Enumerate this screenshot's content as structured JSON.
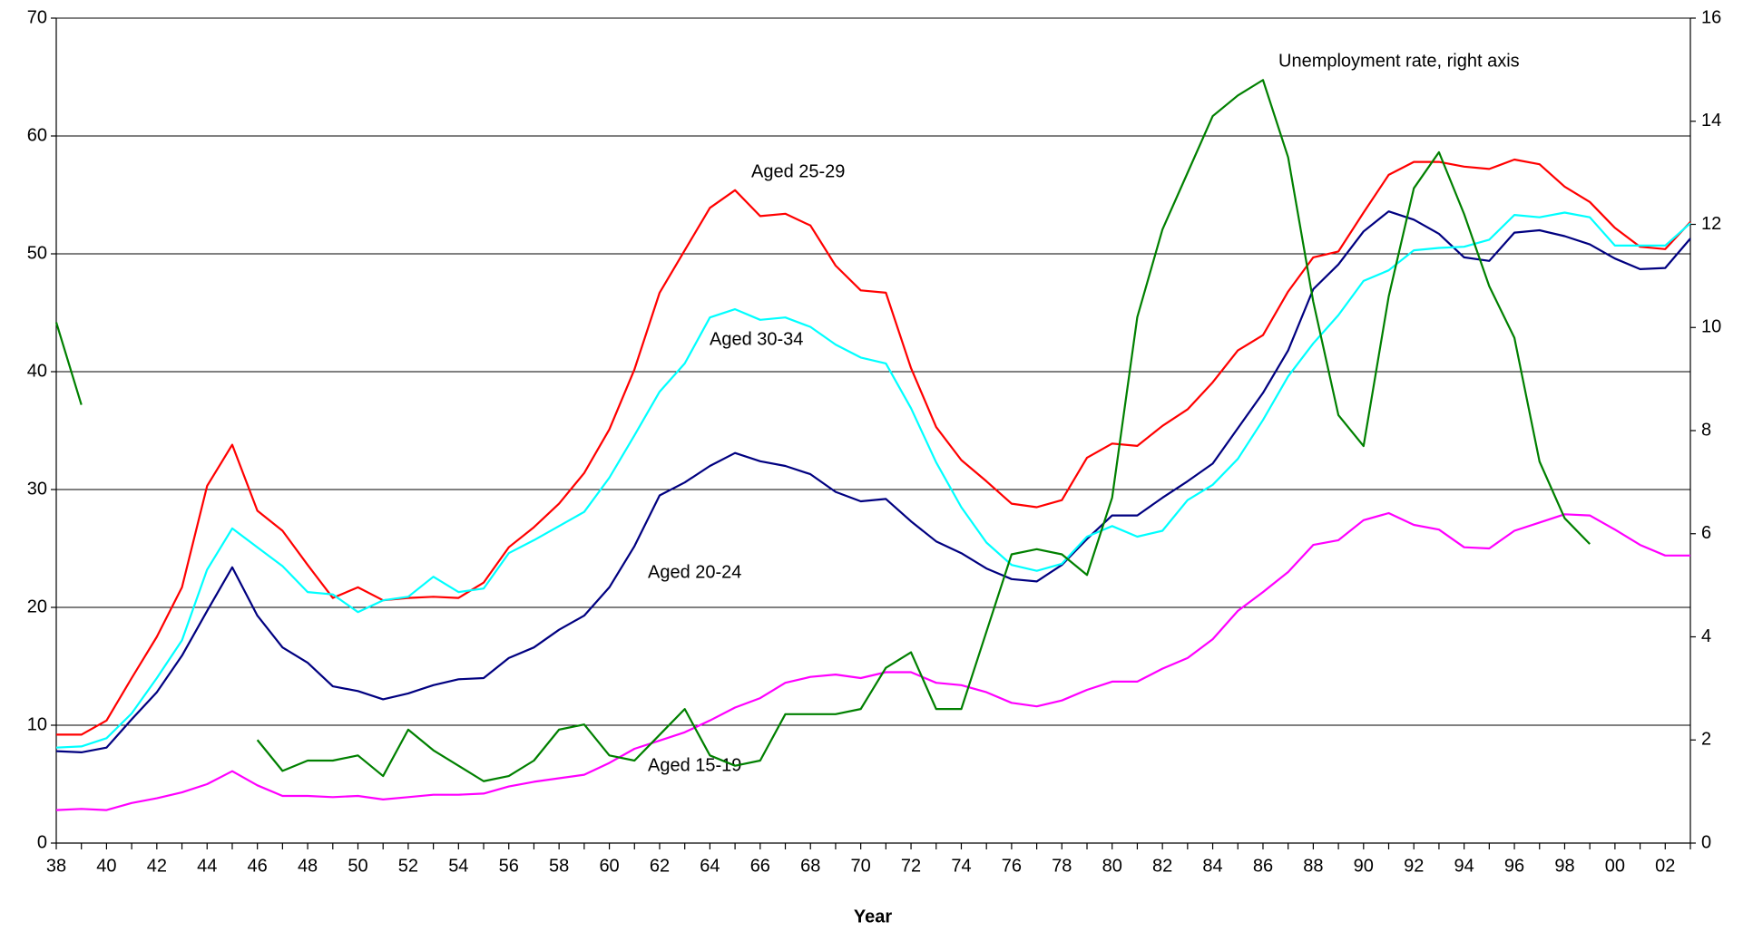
{
  "chart_data": {
    "type": "line",
    "xlabel": "Year",
    "categories": [
      "38",
      null,
      "40",
      null,
      "42",
      null,
      "44",
      null,
      "46",
      null,
      "48",
      null,
      "50",
      null,
      "52",
      null,
      "54",
      null,
      "56",
      null,
      "58",
      null,
      "60",
      null,
      "62",
      null,
      "64",
      null,
      "66",
      null,
      "68",
      null,
      "70",
      null,
      "72",
      null,
      "74",
      null,
      "76",
      null,
      "78",
      null,
      "80",
      null,
      "82",
      null,
      "84",
      null,
      "86",
      null,
      "88",
      null,
      "90",
      null,
      "92",
      null,
      "94",
      null,
      "96",
      null,
      "98",
      null,
      "00",
      null,
      "02",
      null
    ],
    "ylim": [
      0,
      70
    ],
    "yticks": [
      0,
      10,
      20,
      30,
      40,
      50,
      60,
      70
    ],
    "y2lim": [
      0,
      16
    ],
    "y2ticks": [
      0,
      2,
      4,
      6,
      8,
      10,
      12,
      14,
      16
    ],
    "grid": true,
    "series": [
      {
        "name": "Aged 15-19",
        "color": "#ff00ff",
        "values": [
          2.8,
          2.9,
          2.8,
          3.4,
          3.8,
          4.3,
          5,
          6.1,
          4.9,
          4,
          4,
          3.9,
          4,
          3.7,
          3.9,
          4.1,
          4.1,
          4.2,
          4.8,
          5.2,
          5.5,
          5.8,
          6.8,
          8,
          8.7,
          9.4,
          10.4,
          11.5,
          12.3,
          13.6,
          14.1,
          14.3,
          14,
          14.5,
          14.5,
          13.6,
          13.4,
          12.8,
          11.9,
          11.6,
          12.1,
          13,
          13.7,
          13.7,
          14.8,
          15.7,
          17.3,
          19.7,
          21.3,
          23,
          25.3,
          25.7,
          27.4,
          28,
          27,
          26.6,
          25.1,
          25,
          26.5,
          27.2,
          27.9,
          27.8,
          26.6,
          25.3,
          24.4,
          24.4
        ]
      },
      {
        "name": "Aged 20-24",
        "color": "#000080",
        "values": [
          7.8,
          7.7,
          8.1,
          10.5,
          12.8,
          15.9,
          19.7,
          23.4,
          19.3,
          16.6,
          15.3,
          13.3,
          12.9,
          12.2,
          12.7,
          13.4,
          13.9,
          14,
          15.7,
          16.6,
          18.1,
          19.3,
          21.7,
          25.2,
          29.5,
          30.6,
          32,
          33.1,
          32.4,
          32,
          31.3,
          29.8,
          29,
          29.2,
          27.3,
          25.6,
          24.6,
          23.3,
          22.4,
          22.2,
          23.6,
          25.8,
          27.8,
          27.8,
          29.3,
          30.7,
          32.2,
          35.2,
          38.2,
          41.8,
          47,
          49.1,
          51.9,
          53.6,
          52.9,
          51.7,
          49.7,
          49.4,
          51.8,
          52,
          51.5,
          50.8,
          49.6,
          48.7,
          48.8,
          51.3
        ]
      },
      {
        "name": "Aged 25-29",
        "color": "#ff0000",
        "values": [
          9.2,
          9.2,
          10.4,
          14,
          17.5,
          21.7,
          30.3,
          33.8,
          28.2,
          26.5,
          23.6,
          20.8,
          21.7,
          20.6,
          20.8,
          20.9,
          20.8,
          22.1,
          25.1,
          26.8,
          28.8,
          31.4,
          35.1,
          40.2,
          46.7,
          50.3,
          53.9,
          55.4,
          53.2,
          53.4,
          52.4,
          49,
          46.9,
          46.7,
          40.3,
          35.3,
          32.5,
          30.7,
          28.8,
          28.5,
          29.1,
          32.7,
          33.9,
          33.7,
          35.4,
          36.8,
          39.1,
          41.8,
          43.1,
          46.8,
          49.7,
          50.2,
          53.5,
          56.7,
          57.8,
          57.8,
          57.4,
          57.2,
          58,
          57.6,
          55.7,
          54.4,
          52.2,
          50.6,
          50.4,
          52.7
        ]
      },
      {
        "name": "Aged 30-34",
        "color": "#00ffff",
        "values": [
          8.1,
          8.2,
          8.9,
          11,
          14,
          17.2,
          23.2,
          26.7,
          25.1,
          23.5,
          21.3,
          21.1,
          19.6,
          20.6,
          20.9,
          22.6,
          21.3,
          21.6,
          24.6,
          25.7,
          26.9,
          28.1,
          31,
          34.6,
          38.3,
          40.7,
          44.6,
          45.3,
          44.4,
          44.6,
          43.8,
          42.3,
          41.2,
          40.7,
          36.9,
          32.3,
          28.5,
          25.5,
          23.6,
          23.1,
          23.7,
          26,
          26.9,
          26,
          26.5,
          29.1,
          30.4,
          32.6,
          35.9,
          39.6,
          42.4,
          44.8,
          47.7,
          48.6,
          50.3,
          50.5,
          50.6,
          51.2,
          53.3,
          53.1,
          53.5,
          53.1,
          50.7,
          50.7,
          50.7,
          52.6
        ]
      },
      {
        "name": "Unemployment rate, right axis",
        "color": "#008000",
        "axis": "y2",
        "values": [
          10.1,
          8.5,
          null,
          null,
          null,
          null,
          null,
          null,
          2,
          1.4,
          1.6,
          1.6,
          1.7,
          1.3,
          2.2,
          1.8,
          1.5,
          1.2,
          1.3,
          1.6,
          2.2,
          2.3,
          1.7,
          1.6,
          2.1,
          2.6,
          1.7,
          1.5,
          1.6,
          2.5,
          2.5,
          2.5,
          2.6,
          3.4,
          3.7,
          2.6,
          2.6,
          4.1,
          5.6,
          5.7,
          5.6,
          5.2,
          6.7,
          10.2,
          11.9,
          13,
          14.1,
          14.5,
          14.8,
          13.3,
          10.5,
          8.3,
          7.7,
          10.6,
          12.7,
          13.4,
          12.2,
          10.8,
          9.8,
          7.4,
          6.3,
          5.8,
          null,
          null,
          null,
          null
        ]
      }
    ]
  }
}
